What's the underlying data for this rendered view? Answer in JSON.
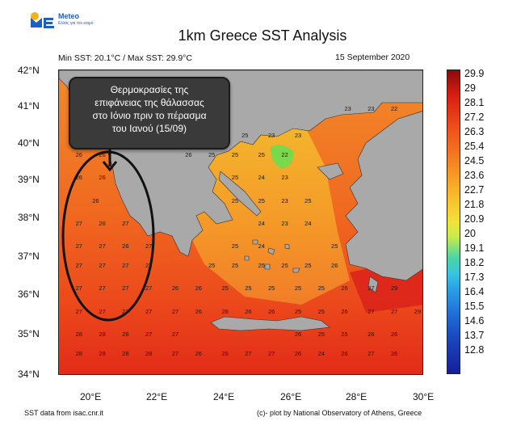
{
  "logo": {
    "brand": "Meteo",
    "tagline": "Ελλάς για τον καιρό"
  },
  "title": "1km Greece SST Analysis",
  "minmax": "Min SST: 20.1°C / Max SST: 29.9°C",
  "date": "15 September 2020",
  "lat_labels": [
    "42°N",
    "41°N",
    "40°N",
    "39°N",
    "38°N",
    "37°N",
    "36°N",
    "35°N",
    "34°N"
  ],
  "lon_labels": [
    "20°E",
    "22°E",
    "24°E",
    "26°E",
    "28°E",
    "30°E"
  ],
  "colorbar_labels": [
    "29.9",
    "29",
    "28.1",
    "27.2",
    "26.3",
    "25.4",
    "24.5",
    "23.6",
    "22.7",
    "21.8",
    "20.9",
    "20",
    "19.1",
    "18.2",
    "17.3",
    "16.4",
    "15.5",
    "14.6",
    "13.7",
    "12.8"
  ],
  "annotation": [
    "Θερμοκρασίες της",
    "επιφάνειας της θάλασσας",
    "στο Ιόνιο πριν το πέρασμα",
    "του Ιανού (15/09)"
  ],
  "footer": {
    "source": "SST data from isac.cnr.it",
    "credit": "(c)- plot by National Observatory of Athens, Greece"
  },
  "sst_values": [
    {
      "lon": 22.9,
      "lat": 40.9,
      "v": "23"
    },
    {
      "lon": 23.8,
      "lat": 40.3,
      "v": "24"
    },
    {
      "lon": 24.6,
      "lat": 40.3,
      "v": "25"
    },
    {
      "lon": 25.4,
      "lat": 40.3,
      "v": "23"
    },
    {
      "lon": 26.2,
      "lat": 40.3,
      "v": "23"
    },
    {
      "lon": 27.7,
      "lat": 41.0,
      "v": "23"
    },
    {
      "lon": 28.4,
      "lat": 41.0,
      "v": "23"
    },
    {
      "lon": 29.1,
      "lat": 41.0,
      "v": "22"
    },
    {
      "lon": 19.6,
      "lat": 39.8,
      "v": "26"
    },
    {
      "lon": 20.3,
      "lat": 39.8,
      "v": "26"
    },
    {
      "lon": 22.9,
      "lat": 39.8,
      "v": "26"
    },
    {
      "lon": 23.6,
      "lat": 39.8,
      "v": "25"
    },
    {
      "lon": 24.3,
      "lat": 39.8,
      "v": "25"
    },
    {
      "lon": 25.1,
      "lat": 39.8,
      "v": "25"
    },
    {
      "lon": 25.8,
      "lat": 39.8,
      "v": "22"
    },
    {
      "lon": 19.6,
      "lat": 39.2,
      "v": "26"
    },
    {
      "lon": 20.3,
      "lat": 39.2,
      "v": "26"
    },
    {
      "lon": 24.3,
      "lat": 39.2,
      "v": "25"
    },
    {
      "lon": 25.1,
      "lat": 39.2,
      "v": "24"
    },
    {
      "lon": 25.8,
      "lat": 39.2,
      "v": "23"
    },
    {
      "lon": 20.1,
      "lat": 38.6,
      "v": "26"
    },
    {
      "lon": 24.3,
      "lat": 38.6,
      "v": "25"
    },
    {
      "lon": 25.1,
      "lat": 38.6,
      "v": "25"
    },
    {
      "lon": 25.8,
      "lat": 38.6,
      "v": "23"
    },
    {
      "lon": 26.5,
      "lat": 38.6,
      "v": "25"
    },
    {
      "lon": 19.6,
      "lat": 38.0,
      "v": "27"
    },
    {
      "lon": 20.3,
      "lat": 38.0,
      "v": "26"
    },
    {
      "lon": 21.0,
      "lat": 38.0,
      "v": "27"
    },
    {
      "lon": 25.1,
      "lat": 38.0,
      "v": "24"
    },
    {
      "lon": 25.8,
      "lat": 38.0,
      "v": "23"
    },
    {
      "lon": 26.5,
      "lat": 38.0,
      "v": "24"
    },
    {
      "lon": 19.6,
      "lat": 37.4,
      "v": "27"
    },
    {
      "lon": 20.3,
      "lat": 37.4,
      "v": "27"
    },
    {
      "lon": 21.0,
      "lat": 37.4,
      "v": "26"
    },
    {
      "lon": 21.7,
      "lat": 37.4,
      "v": "27"
    },
    {
      "lon": 24.3,
      "lat": 37.4,
      "v": "25"
    },
    {
      "lon": 25.1,
      "lat": 37.4,
      "v": "24"
    },
    {
      "lon": 27.3,
      "lat": 37.4,
      "v": "25"
    },
    {
      "lon": 19.6,
      "lat": 36.9,
      "v": "27"
    },
    {
      "lon": 20.3,
      "lat": 36.9,
      "v": "27"
    },
    {
      "lon": 21.0,
      "lat": 36.9,
      "v": "27"
    },
    {
      "lon": 21.7,
      "lat": 36.9,
      "v": "27"
    },
    {
      "lon": 23.6,
      "lat": 36.9,
      "v": "25"
    },
    {
      "lon": 24.3,
      "lat": 36.9,
      "v": "25"
    },
    {
      "lon": 25.1,
      "lat": 36.9,
      "v": "25"
    },
    {
      "lon": 25.8,
      "lat": 36.9,
      "v": "25"
    },
    {
      "lon": 26.5,
      "lat": 36.9,
      "v": "25"
    },
    {
      "lon": 27.3,
      "lat": 36.9,
      "v": "26"
    },
    {
      "lon": 19.6,
      "lat": 36.3,
      "v": "27"
    },
    {
      "lon": 20.3,
      "lat": 36.3,
      "v": "27"
    },
    {
      "lon": 21.0,
      "lat": 36.3,
      "v": "27"
    },
    {
      "lon": 21.7,
      "lat": 36.3,
      "v": "27"
    },
    {
      "lon": 22.5,
      "lat": 36.3,
      "v": "26"
    },
    {
      "lon": 23.2,
      "lat": 36.3,
      "v": "26"
    },
    {
      "lon": 24.0,
      "lat": 36.3,
      "v": "25"
    },
    {
      "lon": 24.7,
      "lat": 36.3,
      "v": "25"
    },
    {
      "lon": 25.4,
      "lat": 36.3,
      "v": "25"
    },
    {
      "lon": 26.2,
      "lat": 36.3,
      "v": "25"
    },
    {
      "lon": 26.9,
      "lat": 36.3,
      "v": "25"
    },
    {
      "lon": 27.6,
      "lat": 36.3,
      "v": "26"
    },
    {
      "lon": 28.4,
      "lat": 36.3,
      "v": "27"
    },
    {
      "lon": 29.1,
      "lat": 36.3,
      "v": "29"
    },
    {
      "lon": 19.6,
      "lat": 35.7,
      "v": "27"
    },
    {
      "lon": 20.3,
      "lat": 35.7,
      "v": "27"
    },
    {
      "lon": 21.0,
      "lat": 35.7,
      "v": "27"
    },
    {
      "lon": 21.7,
      "lat": 35.7,
      "v": "27"
    },
    {
      "lon": 22.5,
      "lat": 35.7,
      "v": "27"
    },
    {
      "lon": 23.2,
      "lat": 35.7,
      "v": "26"
    },
    {
      "lon": 24.0,
      "lat": 35.7,
      "v": "26"
    },
    {
      "lon": 24.7,
      "lat": 35.7,
      "v": "26"
    },
    {
      "lon": 25.4,
      "lat": 35.7,
      "v": "26"
    },
    {
      "lon": 26.2,
      "lat": 35.7,
      "v": "25"
    },
    {
      "lon": 26.9,
      "lat": 35.7,
      "v": "25"
    },
    {
      "lon": 27.6,
      "lat": 35.7,
      "v": "26"
    },
    {
      "lon": 28.4,
      "lat": 35.7,
      "v": "27"
    },
    {
      "lon": 29.1,
      "lat": 35.7,
      "v": "27"
    },
    {
      "lon": 29.8,
      "lat": 35.7,
      "v": "29"
    },
    {
      "lon": 19.6,
      "lat": 35.1,
      "v": "28"
    },
    {
      "lon": 20.3,
      "lat": 35.1,
      "v": "28"
    },
    {
      "lon": 21.0,
      "lat": 35.1,
      "v": "28"
    },
    {
      "lon": 21.7,
      "lat": 35.1,
      "v": "27"
    },
    {
      "lon": 22.5,
      "lat": 35.1,
      "v": "27"
    },
    {
      "lon": 26.2,
      "lat": 35.1,
      "v": "26"
    },
    {
      "lon": 26.9,
      "lat": 35.1,
      "v": "25"
    },
    {
      "lon": 27.6,
      "lat": 35.1,
      "v": "25"
    },
    {
      "lon": 28.4,
      "lat": 35.1,
      "v": "26"
    },
    {
      "lon": 29.1,
      "lat": 35.1,
      "v": "26"
    },
    {
      "lon": 19.6,
      "lat": 34.6,
      "v": "28"
    },
    {
      "lon": 20.3,
      "lat": 34.6,
      "v": "28"
    },
    {
      "lon": 21.0,
      "lat": 34.6,
      "v": "28"
    },
    {
      "lon": 21.7,
      "lat": 34.6,
      "v": "28"
    },
    {
      "lon": 22.5,
      "lat": 34.6,
      "v": "27"
    },
    {
      "lon": 23.2,
      "lat": 34.6,
      "v": "26"
    },
    {
      "lon": 24.0,
      "lat": 34.6,
      "v": "26"
    },
    {
      "lon": 24.7,
      "lat": 34.6,
      "v": "27"
    },
    {
      "lon": 25.4,
      "lat": 34.6,
      "v": "27"
    },
    {
      "lon": 26.2,
      "lat": 34.6,
      "v": "26"
    },
    {
      "lon": 26.9,
      "lat": 34.6,
      "v": "24"
    },
    {
      "lon": 27.6,
      "lat": 34.6,
      "v": "26"
    },
    {
      "lon": 28.4,
      "lat": 34.6,
      "v": "27"
    },
    {
      "lon": 29.1,
      "lat": 34.6,
      "v": "26"
    }
  ]
}
